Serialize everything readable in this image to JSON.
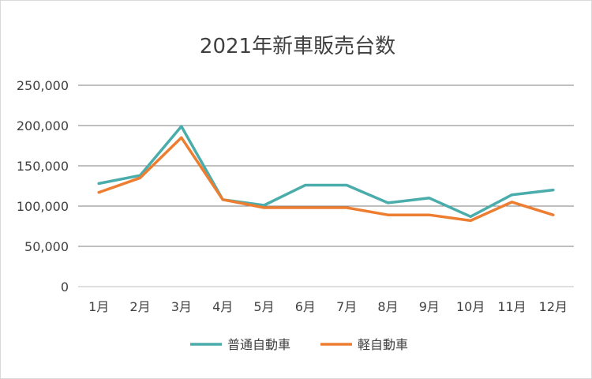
{
  "chart_data": {
    "type": "line",
    "title": "2021年新車販売台数",
    "xlabel": "",
    "ylabel": "",
    "categories": [
      "1月",
      "2月",
      "3月",
      "4月",
      "5月",
      "6月",
      "7月",
      "8月",
      "9月",
      "10月",
      "11月",
      "12月"
    ],
    "ylim": [
      0,
      250000
    ],
    "yticks": [
      0,
      50000,
      100000,
      150000,
      200000,
      250000
    ],
    "ytick_labels": [
      "0",
      "50,000",
      "100,000",
      "150,000",
      "200,000",
      "250,000"
    ],
    "grid": true,
    "legend_position": "bottom",
    "series": [
      {
        "name": "普通自動車",
        "color": "#4bacac",
        "values": [
          128000,
          138000,
          199000,
          108000,
          101000,
          126000,
          126000,
          104000,
          110000,
          87000,
          114000,
          120000
        ]
      },
      {
        "name": "軽自動車",
        "color": "#ed7d31",
        "values": [
          117000,
          135000,
          185000,
          108000,
          98000,
          98000,
          98000,
          89000,
          89000,
          82000,
          105000,
          89000
        ]
      }
    ]
  }
}
